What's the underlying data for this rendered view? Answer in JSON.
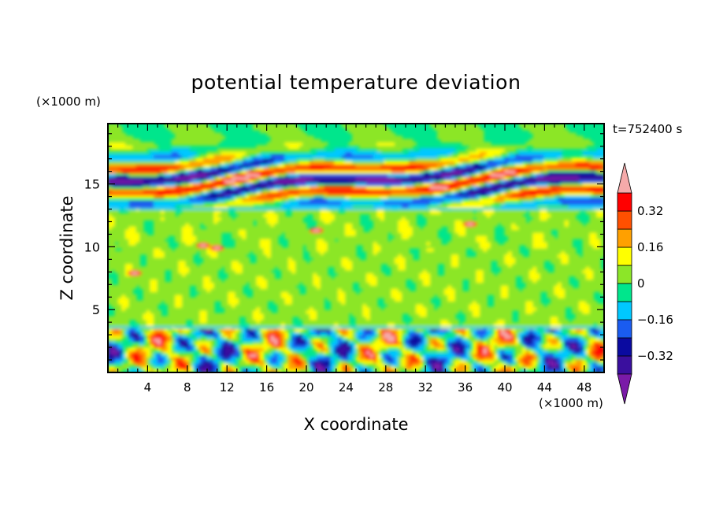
{
  "chart_data": {
    "type": "heatmap",
    "title": "potential temperature deviation",
    "xlabel": "X coordinate",
    "ylabel": "Z coordinate",
    "x_unit": "(×1000 m)",
    "y_unit": "(×1000 m)",
    "time_label": "t=752400 s",
    "xlim": [
      0,
      50
    ],
    "ylim": [
      0,
      19.8
    ],
    "x_ticks": [
      4,
      8,
      12,
      16,
      20,
      24,
      28,
      32,
      36,
      40,
      44,
      48
    ],
    "y_ticks": [
      5,
      10,
      15
    ],
    "colorbar": {
      "levels": [
        -0.4,
        -0.32,
        -0.24,
        -0.16,
        -0.08,
        0,
        0.08,
        0.16,
        0.24,
        0.32,
        0.4
      ],
      "tick_labels": [
        "0.32",
        "0.16",
        "0",
        "−0.16",
        "−0.32"
      ],
      "tick_values": [
        0.32,
        0.16,
        0,
        -0.16,
        -0.32
      ],
      "colors": [
        "#7a1aa8",
        "#3a0f9e",
        "#0a0aa0",
        "#1a5cf0",
        "#00c8ff",
        "#00e68c",
        "#8ce628",
        "#ffff00",
        "#ffa000",
        "#ff5000",
        "#ff0000",
        "#f5aaaa"
      ]
    },
    "features": [
      {
        "x": [
          0,
          50
        ],
        "z": [
          0.2,
          3.5
        ],
        "pattern": "convective boundary layer, alternating warm/cold cells"
      },
      {
        "x": [
          0,
          50
        ],
        "z": [
          3.5,
          13
        ],
        "value": 0.02
      },
      {
        "x": [
          0,
          50
        ],
        "z": [
          13,
          19
        ],
        "pattern": "tilted wave bands, amplitude up to ±0.4"
      }
    ]
  }
}
